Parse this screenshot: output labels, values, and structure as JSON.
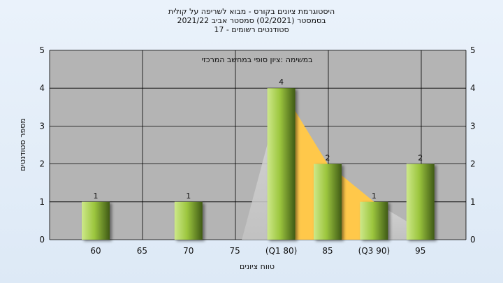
{
  "chart_data": {
    "type": "bar",
    "title": "היסטוגרמת ציונים בקורס - מבוא לשריפה על קולית",
    "subtitle": "בסמסטר (02/2021) סמסטר אביב 2021/22",
    "subtitle2": "סטודנטים רשומים - 17",
    "annotation": "במשימה :ציון סופי במחשב המרכזי",
    "xlabel": "טווח ציונים",
    "ylabel": "מספר סטודנטים",
    "ylim": [
      0,
      5
    ],
    "yticks": [
      "0",
      "1",
      "2",
      "3",
      "4",
      "5"
    ],
    "categories": [
      "60",
      "65",
      "70",
      "75",
      "(Q1 80)",
      "85",
      "(Q3 90)",
      "95"
    ],
    "values": [
      1,
      0,
      1,
      0,
      4,
      2,
      1,
      2
    ],
    "value_labels": [
      "1",
      "",
      "1",
      "",
      "4",
      "2",
      "1",
      "2"
    ],
    "area_series": [
      0,
      0,
      0,
      0,
      4,
      2,
      1,
      0
    ],
    "colors": {
      "plot_bg": "#b4b4b4",
      "bar_light": "#cde88a",
      "bar_mid": "#9cc63e",
      "bar_dark": "#3f5a16",
      "area_fill": "#ffc84a",
      "grid": "#000000"
    },
    "grid": true
  }
}
